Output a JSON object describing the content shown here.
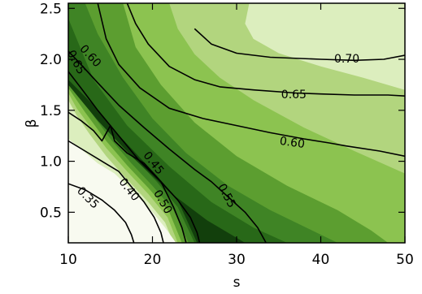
{
  "chart_data": {
    "type": "contour",
    "title": "",
    "xlabel": "s",
    "ylabel": "β",
    "xlim": [
      10,
      50
    ],
    "ylim": [
      0.2,
      2.55
    ],
    "xticks": [
      10,
      20,
      30,
      40,
      50
    ],
    "xtick_labels": [
      "10",
      "20",
      "30",
      "40",
      "50"
    ],
    "yticks": [
      0.5,
      1.0,
      1.5,
      2.0,
      2.5
    ],
    "ytick_labels": [
      "0.5",
      "1.0",
      "1.5",
      "2.0",
      "2.5"
    ],
    "grid": false,
    "fill_colors": [
      "#f8faf0",
      "#dceebe",
      "#b2d57e",
      "#8cc350",
      "#5c9e30",
      "#3f8425",
      "#286818",
      "#123f0c"
    ],
    "filled_regions": [
      {
        "level_index": 1,
        "points": [
          [
            10,
            0.2
          ],
          [
            50,
            0.2
          ],
          [
            50,
            2.55
          ],
          [
            10,
            2.55
          ]
        ]
      },
      {
        "level_index": 2,
        "points": [
          [
            10,
            1.6
          ],
          [
            11,
            1.45
          ],
          [
            12.5,
            1.27
          ],
          [
            14.5,
            1.05
          ],
          [
            17,
            0.82
          ],
          [
            19.5,
            0.6
          ],
          [
            21.5,
            0.4
          ],
          [
            22.5,
            0.2
          ],
          [
            50,
            0.2
          ],
          [
            50,
            1.7
          ],
          [
            45,
            1.82
          ],
          [
            40,
            1.93
          ],
          [
            35,
            2.06
          ],
          [
            32,
            2.2
          ],
          [
            31,
            2.35
          ],
          [
            31.5,
            2.55
          ],
          [
            10,
            2.55
          ]
        ]
      },
      {
        "level_index": 3,
        "points": [
          [
            10,
            1.67
          ],
          [
            11,
            1.52
          ],
          [
            12.5,
            1.35
          ],
          [
            14.5,
            1.13
          ],
          [
            17,
            0.9
          ],
          [
            19.5,
            0.68
          ],
          [
            21.8,
            0.45
          ],
          [
            23,
            0.2
          ],
          [
            50,
            0.2
          ],
          [
            50,
            0.88
          ],
          [
            44,
            1.1
          ],
          [
            38,
            1.33
          ],
          [
            32,
            1.6
          ],
          [
            28,
            1.82
          ],
          [
            25,
            2.05
          ],
          [
            23,
            2.3
          ],
          [
            22,
            2.55
          ],
          [
            10,
            2.55
          ]
        ]
      },
      {
        "level_index": 4,
        "points": [
          [
            10,
            1.72
          ],
          [
            12,
            1.48
          ],
          [
            14.5,
            1.2
          ],
          [
            17,
            0.96
          ],
          [
            19.5,
            0.74
          ],
          [
            22,
            0.5
          ],
          [
            23.5,
            0.2
          ],
          [
            48,
            0.2
          ],
          [
            46,
            0.32
          ],
          [
            42,
            0.52
          ],
          [
            36,
            0.76
          ],
          [
            30,
            1.05
          ],
          [
            25,
            1.38
          ],
          [
            21,
            1.75
          ],
          [
            18,
            2.12
          ],
          [
            16.5,
            2.55
          ],
          [
            10,
            2.55
          ]
        ]
      },
      {
        "level_index": 5,
        "points": [
          [
            10,
            1.76
          ],
          [
            12.5,
            1.5
          ],
          [
            15,
            1.22
          ],
          [
            17.5,
            0.98
          ],
          [
            20,
            0.76
          ],
          [
            22.5,
            0.52
          ],
          [
            24.3,
            0.2
          ],
          [
            42,
            0.2
          ],
          [
            39,
            0.32
          ],
          [
            34,
            0.52
          ],
          [
            29,
            0.76
          ],
          [
            24,
            1.08
          ],
          [
            20,
            1.42
          ],
          [
            16.5,
            1.82
          ],
          [
            13.5,
            2.25
          ],
          [
            12,
            2.55
          ],
          [
            10,
            2.55
          ]
        ]
      },
      {
        "level_index": 6,
        "points": [
          [
            10,
            1.78
          ],
          [
            13,
            1.5
          ],
          [
            15.5,
            1.25
          ],
          [
            18,
            1.02
          ],
          [
            20.5,
            0.8
          ],
          [
            23,
            0.55
          ],
          [
            25,
            0.2
          ],
          [
            36,
            0.2
          ],
          [
            32,
            0.35
          ],
          [
            27,
            0.6
          ],
          [
            22,
            0.95
          ],
          [
            17,
            1.35
          ],
          [
            13,
            1.8
          ],
          [
            11,
            2.2
          ],
          [
            10,
            2.4
          ]
        ]
      },
      {
        "level_index": 7,
        "points": [
          [
            10,
            1.8
          ],
          [
            13,
            1.55
          ],
          [
            15.5,
            1.3
          ],
          [
            18,
            1.08
          ],
          [
            20.5,
            0.86
          ],
          [
            23,
            0.62
          ],
          [
            25.3,
            0.2
          ],
          [
            31,
            0.2
          ],
          [
            26.5,
            0.42
          ],
          [
            22,
            0.7
          ],
          [
            17.5,
            1.05
          ],
          [
            13.5,
            1.4
          ],
          [
            10,
            1.75
          ]
        ]
      },
      {
        "level_index": 0,
        "points": [
          [
            10,
            0.2
          ],
          [
            10,
            1.22
          ],
          [
            11.5,
            1.12
          ],
          [
            13.5,
            0.98
          ],
          [
            15.5,
            0.88
          ],
          [
            17.5,
            0.72
          ],
          [
            19.5,
            0.55
          ],
          [
            21.5,
            0.35
          ],
          [
            22.8,
            0.2
          ]
        ]
      }
    ],
    "contour_lines": [
      {
        "level": "0.70",
        "points": [
          [
            25,
            2.3
          ],
          [
            27,
            2.15
          ],
          [
            30,
            2.06
          ],
          [
            34,
            2.02
          ],
          [
            40,
            2.0
          ],
          [
            44,
            1.99
          ],
          [
            47.5,
            2.0
          ],
          [
            50,
            2.04
          ]
        ]
      },
      {
        "level": "0.65",
        "points": [
          [
            17,
            2.55
          ],
          [
            18,
            2.35
          ],
          [
            19.5,
            2.15
          ],
          [
            22,
            1.93
          ],
          [
            25,
            1.8
          ],
          [
            28,
            1.73
          ],
          [
            32,
            1.7
          ],
          [
            37,
            1.67
          ],
          [
            40,
            1.66
          ],
          [
            44,
            1.65
          ],
          [
            48,
            1.65
          ],
          [
            50,
            1.64
          ]
        ]
      },
      {
        "level": "0.60",
        "points": [
          [
            13.5,
            2.55
          ],
          [
            14.5,
            2.2
          ],
          [
            16,
            1.95
          ],
          [
            18.5,
            1.72
          ],
          [
            22,
            1.52
          ],
          [
            26,
            1.42
          ],
          [
            30,
            1.35
          ],
          [
            34,
            1.28
          ],
          [
            38,
            1.22
          ],
          [
            41,
            1.18
          ],
          [
            43,
            1.15
          ],
          [
            47,
            1.1
          ],
          [
            50,
            1.05
          ]
        ]
      },
      {
        "level": "0.55",
        "points": [
          [
            10,
            2.08
          ],
          [
            11.5,
            1.95
          ],
          [
            13.5,
            1.77
          ],
          [
            16,
            1.55
          ],
          [
            19,
            1.33
          ],
          [
            22,
            1.12
          ],
          [
            25,
            0.92
          ],
          [
            27,
            0.8
          ],
          [
            29,
            0.65
          ],
          [
            31,
            0.5
          ],
          [
            32.5,
            0.35
          ],
          [
            33.5,
            0.2
          ]
        ]
      },
      {
        "level": "0.50",
        "points": [
          [
            10,
            1.88
          ],
          [
            11.5,
            1.72
          ],
          [
            13.5,
            1.5
          ],
          [
            16,
            1.25
          ],
          [
            18.5,
            1.0
          ],
          [
            21,
            0.8
          ],
          [
            23,
            0.62
          ],
          [
            24.5,
            0.45
          ],
          [
            25.3,
            0.3
          ],
          [
            25.6,
            0.2
          ]
        ]
      },
      {
        "level": "0.45",
        "points": [
          [
            10,
            1.48
          ],
          [
            11.5,
            1.4
          ],
          [
            13,
            1.3
          ],
          [
            14,
            1.2
          ],
          [
            15,
            1.35
          ],
          [
            15.5,
            1.2
          ],
          [
            17,
            1.08
          ],
          [
            19,
            0.98
          ],
          [
            21,
            0.8
          ],
          [
            22.5,
            0.55
          ],
          [
            23.5,
            0.35
          ],
          [
            24,
            0.2
          ]
        ]
      },
      {
        "level": "0.40",
        "points": [
          [
            10,
            1.2
          ],
          [
            12,
            1.1
          ],
          [
            14,
            1.0
          ],
          [
            16,
            0.9
          ],
          [
            17.5,
            0.75
          ],
          [
            19,
            0.6
          ],
          [
            20.2,
            0.45
          ],
          [
            21,
            0.3
          ],
          [
            21.3,
            0.2
          ]
        ]
      },
      {
        "level": "0.35",
        "points": [
          [
            10,
            0.78
          ],
          [
            12,
            0.72
          ],
          [
            14,
            0.62
          ],
          [
            15.5,
            0.52
          ],
          [
            16.8,
            0.4
          ],
          [
            17.5,
            0.28
          ],
          [
            17.8,
            0.2
          ]
        ]
      }
    ],
    "contour_labels": [
      {
        "text": "0.70",
        "x": 43.1,
        "y": 2.0,
        "rotate": 0
      },
      {
        "text": "0.65",
        "x": 36.8,
        "y": 1.65,
        "rotate": 0
      },
      {
        "text": "0.60",
        "x": 36.6,
        "y": 1.18,
        "rotate": 8
      },
      {
        "text": "0.55",
        "x": 28.8,
        "y": 0.66,
        "rotate": 62
      },
      {
        "text": "0.50",
        "x": 21.2,
        "y": 0.6,
        "rotate": 60
      },
      {
        "text": "0.45",
        "x": 20.1,
        "y": 0.98,
        "rotate": 52
      },
      {
        "text": "0.40",
        "x": 17.2,
        "y": 0.72,
        "rotate": 52
      },
      {
        "text": "0.35",
        "x": 12.3,
        "y": 0.64,
        "rotate": 45
      },
      {
        "text": "0.65",
        "x": 10.9,
        "y": 1.97,
        "rotate": 62
      },
      {
        "text": "0.60",
        "x": 12.6,
        "y": 2.03,
        "rotate": 48
      }
    ]
  }
}
